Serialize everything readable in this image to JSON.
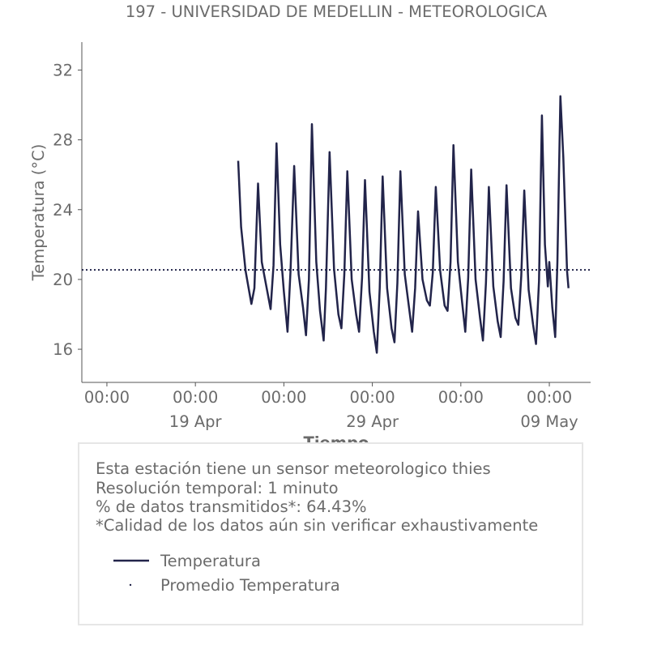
{
  "chart_data": {
    "type": "line",
    "title": "197 - UNIVERSIDAD DE MEDELLIN - METEOROLOGICA",
    "xlabel": "Tiempo",
    "ylabel": "Temperatura (°C)",
    "ylim": [
      14.1,
      33.6
    ],
    "xlim": [
      "2025-04-12 14:00",
      "2025-05-11 08:00"
    ],
    "y_ticks": [
      16,
      20,
      24,
      28,
      32
    ],
    "x_ticks": [
      {
        "time": "2025-04-14 00:00",
        "label": "00:00",
        "sublabel": ""
      },
      {
        "time": "2025-04-19 00:00",
        "label": "00:00",
        "sublabel": "19 Apr"
      },
      {
        "time": "2025-04-24 00:00",
        "label": "00:00",
        "sublabel": ""
      },
      {
        "time": "2025-04-29 00:00",
        "label": "00:00",
        "sublabel": "29 Apr"
      },
      {
        "time": "2025-05-04 00:00",
        "label": "00:00",
        "sublabel": ""
      },
      {
        "time": "2025-05-09 00:00",
        "label": "00:00",
        "sublabel": "09 May"
      }
    ],
    "grid": false,
    "series": [
      {
        "name": "Temperatura",
        "color": "#22244a",
        "style": "solid",
        "points": [
          [
            "2025-04-21 10:00",
            26.8
          ],
          [
            "2025-04-21 14:00",
            23.0
          ],
          [
            "2025-04-21 20:00",
            20.5
          ],
          [
            "2025-04-22 04:00",
            18.6
          ],
          [
            "2025-04-22 08:00",
            19.5
          ],
          [
            "2025-04-22 13:00",
            25.5
          ],
          [
            "2025-04-22 18:00",
            21.0
          ],
          [
            "2025-04-23 02:00",
            19.2
          ],
          [
            "2025-04-23 06:00",
            18.3
          ],
          [
            "2025-04-23 10:00",
            20.8
          ],
          [
            "2025-04-23 14:00",
            27.8
          ],
          [
            "2025-04-23 19:00",
            22.0
          ],
          [
            "2025-04-24 00:00",
            19.3
          ],
          [
            "2025-04-24 05:00",
            17.0
          ],
          [
            "2025-04-24 09:00",
            20.5
          ],
          [
            "2025-04-24 14:00",
            26.5
          ],
          [
            "2025-04-24 20:00",
            20.3
          ],
          [
            "2025-04-25 02:00",
            18.4
          ],
          [
            "2025-04-25 06:00",
            16.8
          ],
          [
            "2025-04-25 10:00",
            20.0
          ],
          [
            "2025-04-25 14:00",
            28.9
          ],
          [
            "2025-04-25 20:00",
            21.0
          ],
          [
            "2025-04-26 01:00",
            18.2
          ],
          [
            "2025-04-26 06:00",
            16.5
          ],
          [
            "2025-04-26 09:00",
            19.5
          ],
          [
            "2025-04-26 14:00",
            27.3
          ],
          [
            "2025-04-26 20:00",
            20.6
          ],
          [
            "2025-04-27 02:00",
            18.0
          ],
          [
            "2025-04-27 06:00",
            17.2
          ],
          [
            "2025-04-27 10:00",
            20.3
          ],
          [
            "2025-04-27 14:00",
            26.2
          ],
          [
            "2025-04-27 20:00",
            20.0
          ],
          [
            "2025-04-28 02:00",
            18.0
          ],
          [
            "2025-04-28 06:00",
            17.0
          ],
          [
            "2025-04-28 10:00",
            20.1
          ],
          [
            "2025-04-28 14:00",
            25.7
          ],
          [
            "2025-04-28 20:00",
            19.3
          ],
          [
            "2025-04-29 02:00",
            17.0
          ],
          [
            "2025-04-29 06:00",
            15.8
          ],
          [
            "2025-04-29 10:00",
            19.5
          ],
          [
            "2025-04-29 14:00",
            25.9
          ],
          [
            "2025-04-29 20:00",
            19.5
          ],
          [
            "2025-04-30 02:00",
            17.2
          ],
          [
            "2025-04-30 06:00",
            16.4
          ],
          [
            "2025-04-30 10:00",
            19.8
          ],
          [
            "2025-04-30 14:00",
            26.2
          ],
          [
            "2025-04-30 20:00",
            20.3
          ],
          [
            "2025-05-01 02:00",
            18.3
          ],
          [
            "2025-05-01 06:00",
            17.0
          ],
          [
            "2025-05-01 10:00",
            19.5
          ],
          [
            "2025-05-01 14:00",
            23.9
          ],
          [
            "2025-05-01 20:00",
            20.0
          ],
          [
            "2025-05-02 02:00",
            18.8
          ],
          [
            "2025-05-02 06:00",
            18.5
          ],
          [
            "2025-05-02 10:00",
            20.4
          ],
          [
            "2025-05-02 14:00",
            25.3
          ],
          [
            "2025-05-02 20:00",
            20.5
          ],
          [
            "2025-05-03 02:00",
            18.5
          ],
          [
            "2025-05-03 06:00",
            18.2
          ],
          [
            "2025-05-03 10:00",
            21.0
          ],
          [
            "2025-05-03 14:00",
            27.7
          ],
          [
            "2025-05-03 20:00",
            21.0
          ],
          [
            "2025-05-04 02:00",
            18.6
          ],
          [
            "2025-05-04 06:00",
            17.0
          ],
          [
            "2025-05-04 10:00",
            20.1
          ],
          [
            "2025-05-04 14:00",
            26.3
          ],
          [
            "2025-05-04 20:00",
            20.0
          ],
          [
            "2025-05-05 02:00",
            17.8
          ],
          [
            "2025-05-05 06:00",
            16.5
          ],
          [
            "2025-05-05 10:00",
            19.8
          ],
          [
            "2025-05-05 14:00",
            25.3
          ],
          [
            "2025-05-05 20:00",
            19.6
          ],
          [
            "2025-05-06 02:00",
            17.6
          ],
          [
            "2025-05-06 06:00",
            16.7
          ],
          [
            "2025-05-06 10:00",
            19.9
          ],
          [
            "2025-05-06 14:00",
            25.4
          ],
          [
            "2025-05-06 20:00",
            19.5
          ],
          [
            "2025-05-07 02:00",
            17.8
          ],
          [
            "2025-05-07 06:00",
            17.4
          ],
          [
            "2025-05-07 10:00",
            20.2
          ],
          [
            "2025-05-07 14:00",
            25.1
          ],
          [
            "2025-05-07 20:00",
            19.4
          ],
          [
            "2025-05-08 02:00",
            17.4
          ],
          [
            "2025-05-08 06:00",
            16.3
          ],
          [
            "2025-05-08 10:00",
            19.9
          ],
          [
            "2025-05-08 14:00",
            29.4
          ],
          [
            "2025-05-08 18:00",
            22.0
          ],
          [
            "2025-05-08 22:00",
            19.6
          ],
          [
            "2025-05-09 00:00",
            21.0
          ],
          [
            "2025-05-09 04:00",
            18.4
          ],
          [
            "2025-05-09 08:00",
            16.7
          ],
          [
            "2025-05-09 11:00",
            21.0
          ],
          [
            "2025-05-09 15:00",
            30.5
          ],
          [
            "2025-05-09 19:00",
            27.0
          ],
          [
            "2025-05-10 00:00",
            20.5
          ],
          [
            "2025-05-10 02:00",
            19.5
          ]
        ]
      },
      {
        "name": "Promedio Temperatura",
        "color": "#22244a",
        "style": "dotted",
        "points": [
          [
            "2025-04-12 14:00",
            20.55
          ],
          [
            "2025-05-11 08:00",
            20.55
          ]
        ]
      }
    ],
    "legend_position": "bottom"
  },
  "info": {
    "lines": [
      "Esta estación tiene un sensor meteorologico thies",
      "Resolución temporal: 1 minuto",
      "% de datos transmitidos*: 64.43%",
      "*Calidad de los datos aún sin verificar exhaustivamente"
    ]
  }
}
